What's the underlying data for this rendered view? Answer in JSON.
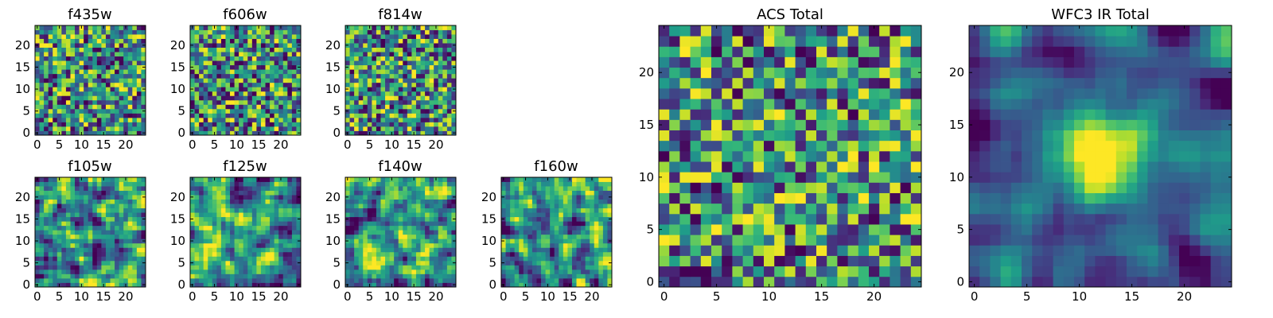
{
  "chart_data": [
    {
      "type": "heatmap",
      "title": "f435w",
      "grid_size": 25,
      "xlim": [
        0,
        24
      ],
      "ylim": [
        0,
        24
      ],
      "xticks": [
        0,
        5,
        10,
        15,
        20
      ],
      "yticks": [
        0,
        5,
        10,
        15,
        20
      ],
      "colormap": "viridis",
      "seed": 11,
      "smoothing": 0
    },
    {
      "type": "heatmap",
      "title": "f606w",
      "grid_size": 25,
      "xlim": [
        0,
        24
      ],
      "ylim": [
        0,
        24
      ],
      "xticks": [
        0,
        5,
        10,
        15,
        20
      ],
      "yticks": [
        0,
        5,
        10,
        15,
        20
      ],
      "colormap": "viridis",
      "seed": 23,
      "smoothing": 0
    },
    {
      "type": "heatmap",
      "title": "f814w",
      "grid_size": 25,
      "xlim": [
        0,
        24
      ],
      "ylim": [
        0,
        24
      ],
      "xticks": [
        0,
        5,
        10,
        15,
        20
      ],
      "yticks": [
        0,
        5,
        10,
        15,
        20
      ],
      "colormap": "viridis",
      "seed": 37,
      "smoothing": 0
    },
    {
      "type": "heatmap",
      "title": "f105w",
      "grid_size": 25,
      "xlim": [
        0,
        24
      ],
      "ylim": [
        0,
        24
      ],
      "xticks": [
        0,
        5,
        10,
        15,
        20
      ],
      "yticks": [
        0,
        5,
        10,
        15,
        20
      ],
      "colormap": "viridis",
      "seed": 41,
      "smoothing": 1
    },
    {
      "type": "heatmap",
      "title": "f125w",
      "grid_size": 25,
      "xlim": [
        0,
        24
      ],
      "ylim": [
        0,
        24
      ],
      "xticks": [
        0,
        5,
        10,
        15,
        20
      ],
      "yticks": [
        0,
        5,
        10,
        15,
        20
      ],
      "colormap": "viridis",
      "seed": 53,
      "smoothing": 1
    },
    {
      "type": "heatmap",
      "title": "f140w",
      "grid_size": 25,
      "xlim": [
        0,
        24
      ],
      "ylim": [
        0,
        24
      ],
      "xticks": [
        0,
        5,
        10,
        15,
        20
      ],
      "yticks": [
        0,
        5,
        10,
        15,
        20
      ],
      "colormap": "viridis",
      "seed": 67,
      "smoothing": 1
    },
    {
      "type": "heatmap",
      "title": "f160w",
      "grid_size": 25,
      "xlim": [
        0,
        24
      ],
      "ylim": [
        0,
        24
      ],
      "xticks": [
        0,
        5,
        10,
        15,
        20
      ],
      "yticks": [
        0,
        5,
        10,
        15,
        20
      ],
      "colormap": "viridis",
      "seed": 79,
      "smoothing": 1
    },
    {
      "type": "heatmap",
      "title": "ACS Total",
      "grid_size": 25,
      "xlim": [
        0,
        24
      ],
      "ylim": [
        0,
        24
      ],
      "xticks": [
        0,
        5,
        10,
        15,
        20
      ],
      "yticks": [
        0,
        5,
        10,
        15,
        20
      ],
      "colormap": "viridis",
      "seed": 97,
      "smoothing": 0
    },
    {
      "type": "heatmap",
      "title": "WFC3 IR Total",
      "grid_size": 25,
      "xlim": [
        0,
        24
      ],
      "ylim": [
        0,
        24
      ],
      "xticks": [
        0,
        5,
        10,
        15,
        20
      ],
      "yticks": [
        0,
        5,
        10,
        15,
        20
      ],
      "colormap": "viridis",
      "seed": 113,
      "smoothing": 2,
      "bright_blob": {
        "x": 12,
        "y": 12,
        "amplitude": 0.35,
        "sigma": 3
      }
    }
  ]
}
